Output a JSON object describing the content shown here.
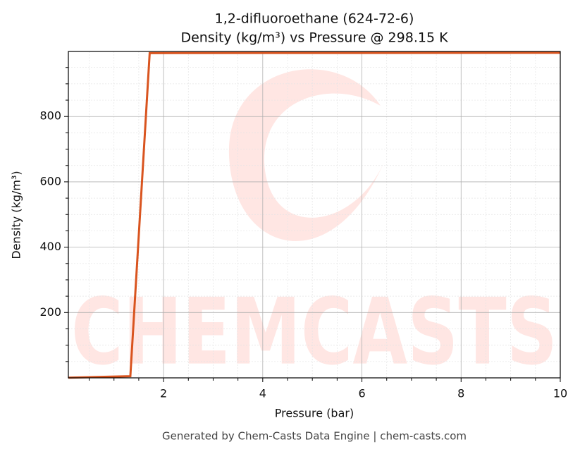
{
  "chart_data": {
    "type": "line",
    "title": "1,2-difluoroethane (624-72-6)",
    "subtitle": "Density (kg/m³) vs Pressure @ 298.15 K",
    "x_label": "Pressure (bar)",
    "y_label": "Density (kg/m³)",
    "footer": "Generated by Chem-Casts Data Engine | chem-casts.com",
    "x": [
      0.08,
      1.33,
      1.72,
      10
    ],
    "series": [
      {
        "name": "Density",
        "color": "#d9541f",
        "values": [
          0.5,
          5,
          994,
          995
        ]
      }
    ],
    "xlim": [
      0.08,
      10
    ],
    "ylim": [
      0,
      999
    ],
    "xticks": [
      2,
      4,
      6,
      8,
      10
    ],
    "yticks": [
      200,
      400,
      600,
      800
    ],
    "xminorticks": [
      0.5,
      1,
      1.5,
      2.5,
      3,
      3.5,
      4.5,
      5,
      5.5,
      6.5,
      7,
      7.5,
      8.5,
      9,
      9.5
    ],
    "yminorticks": [
      50,
      100,
      150,
      250,
      300,
      350,
      450,
      500,
      550,
      650,
      700,
      750,
      850,
      900,
      950
    ],
    "grid": true
  }
}
